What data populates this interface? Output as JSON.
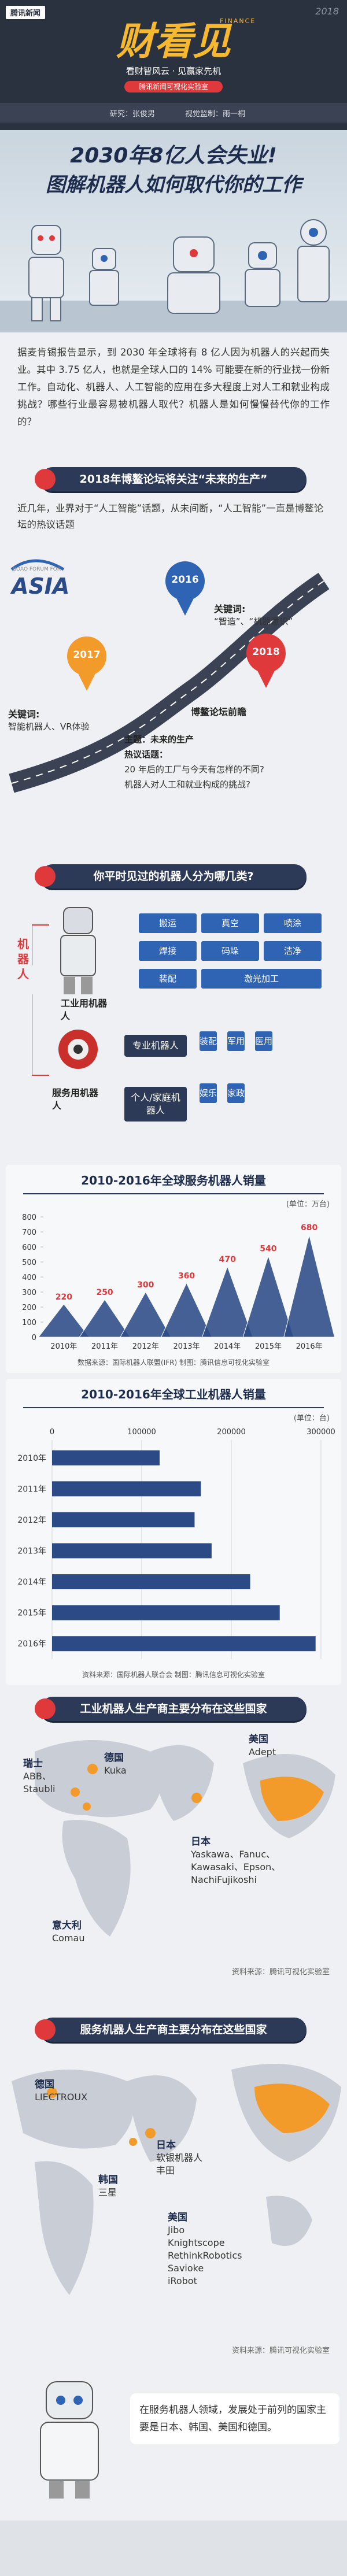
{
  "header": {
    "brand": "腾讯新闻",
    "year": "2018",
    "logo": "财看见",
    "logo_en": "FINANCE",
    "slogan": "看财智风云 · 见赢家先机",
    "badge": "腾讯新闻可视化实验室",
    "credits": [
      "研究：张俊男",
      "视觉监制：雨一桐"
    ]
  },
  "hero": {
    "title": [
      "2030年8亿人会失业!",
      "图解机器人如何取代你的工作"
    ]
  },
  "intro": "据麦肯锡报告显示，到 2030 年全球将有 8 亿人因为机器人的兴起而失业。其中 3.75 亿人，也就是全球人口的 14% 可能要在新的行业找一份新工作。自动化、机器人、人工智能的应用在多大程度上对人工和就业构成挑战？哪些行业最容易被机器人取代？机器人是如何慢慢替代你的工作的？",
  "forum": {
    "heading": "2018年博鳌论坛将关注“未来的生产”",
    "text": "近几年，业界对于“人工智能”话题，从未间断，“人工智能”一直是博鳌论坛的热议话题",
    "logo": "ASIA",
    "logo_sub": "BOAO FORUM FOR",
    "milestones": [
      {
        "year": "2016",
        "label": "关键词:",
        "text": "“智造”、“机器意识”"
      },
      {
        "year": "2017",
        "label": "关键词:",
        "text": "智能机器人、VR体验"
      },
      {
        "year": "2018",
        "title": "博鳌论坛前瞻",
        "lines": [
          "主题：未来的生产",
          "热议话题：",
          "20 年后的工厂与今天有怎样的不同?",
          "机器人对人工和就业构成的挑战?"
        ]
      }
    ]
  },
  "robots": {
    "heading": "你平时见过的机器人分为哪几类?",
    "root": "机器人",
    "industrial": {
      "name": "工业用机器人",
      "items": [
        "搬运",
        "真空",
        "喷涂",
        "焊接",
        "码垛",
        "洁净",
        "装配",
        "激光加工"
      ]
    },
    "service": {
      "name": "服务用机器人",
      "subgroups": [
        {
          "name": "专业机器人",
          "items": [
            "装配",
            "军用",
            "医用"
          ]
        },
        {
          "name": "个人/家庭机器人",
          "items": [
            "娱乐",
            "家政"
          ]
        }
      ]
    }
  },
  "chart_data": [
    {
      "type": "bar",
      "title": "2010-2016年全球服务机器人销量",
      "unit": "(单位：万台)",
      "categories": [
        "2010年",
        "2011年",
        "2012年",
        "2013年",
        "2014年",
        "2015年",
        "2016年"
      ],
      "values": [
        220,
        250,
        300,
        360,
        470,
        540,
        680
      ],
      "ylim": [
        0,
        800
      ],
      "yticks": [
        0,
        100,
        200,
        300,
        400,
        500,
        600,
        700,
        800
      ],
      "color": "#2c4a86",
      "label_color": "#e0393b",
      "grid": false,
      "source": "数据来源：国际机器人联盟(IFR) 制图：腾讯信息可视化实验室"
    },
    {
      "type": "bar",
      "orientation": "horizontal",
      "title": "2010-2016年全球工业机器人销量",
      "unit": "(单位：台)",
      "categories": [
        "2010年",
        "2011年",
        "2012年",
        "2013年",
        "2014年",
        "2015年",
        "2016年"
      ],
      "values": [
        120000,
        166000,
        159000,
        178000,
        221000,
        254000,
        294000
      ],
      "xlim": [
        0,
        300000
      ],
      "xticks": [
        0,
        100000,
        200000,
        300000
      ],
      "color": "#2c4a86",
      "grid": true,
      "source": "资料来源：国际机器人联合会 制图：腾讯信息可视化实验室"
    }
  ],
  "industrial_map": {
    "heading": "工业机器人生产商主要分布在这些国家",
    "countries": [
      {
        "name": "瑞士",
        "companies": [
          "ABB、",
          "Staubli"
        ]
      },
      {
        "name": "德国",
        "companies": [
          "Kuka"
        ]
      },
      {
        "name": "美国",
        "companies": [
          "Adept"
        ]
      },
      {
        "name": "日本",
        "companies": [
          "Yaskawa、Fanuc、",
          "Kawasaki、Epson、",
          "NachiFujikoshi"
        ]
      },
      {
        "name": "意大利",
        "companies": [
          "Comau"
        ]
      }
    ],
    "source": "资料来源：腾讯可视化实验室"
  },
  "service_map": {
    "heading": "服务机器人生产商主要分布在这些国家",
    "countries": [
      {
        "name": "德国",
        "companies": [
          "LIECTROUX"
        ]
      },
      {
        "name": "日本",
        "companies": [
          "软银机器人",
          "丰田"
        ]
      },
      {
        "name": "韩国",
        "companies": [
          "三星"
        ]
      },
      {
        "name": "美国",
        "companies": [
          "Jibo",
          "Knightscope",
          "RethinkRobotics",
          "Savioke",
          "iRobot"
        ]
      }
    ],
    "source": "资料来源：腾讯可视化实验室"
  },
  "conclusion": "在服务机器人领域，发展处于前列的国家主要是日本、韩国、美国和德国。"
}
